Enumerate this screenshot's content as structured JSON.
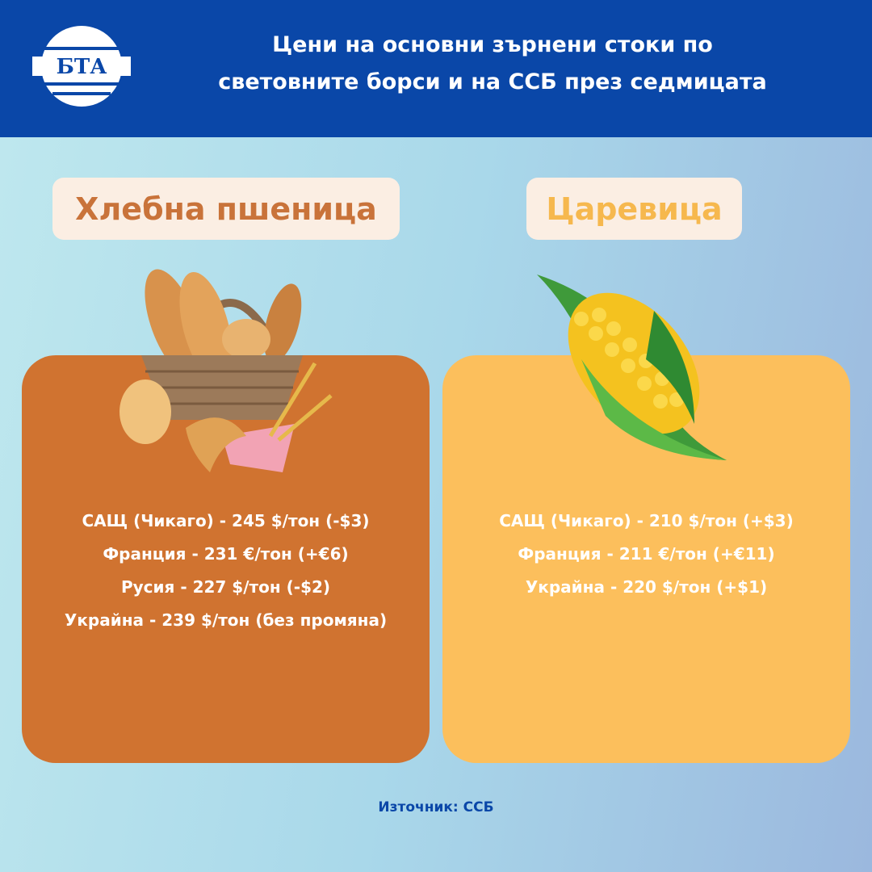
{
  "header": {
    "logo": "БТА",
    "title_lines": [
      "Цени на основни зърнени стоки по",
      "световните борси и на ССБ през седмицата"
    ]
  },
  "panels": [
    {
      "title": "Хлебна пшеница",
      "lines": [
        "САЩ (Чикаго) - 245 $/тон (-$3)",
        "Франция - 231 €/тон (+€6)",
        "Русия - 227 $/тон (-$2)",
        "Украйна - 239 $/тон (без промяна)"
      ]
    },
    {
      "title": "Царевица",
      "lines": [
        "САЩ (Чикаго) - 210 $/тон (+$3)",
        "Франция - 211 €/тон (+€11)",
        "Украйна - 220 $/тон (+$1)"
      ]
    }
  ],
  "source": "Източник:  ССБ"
}
